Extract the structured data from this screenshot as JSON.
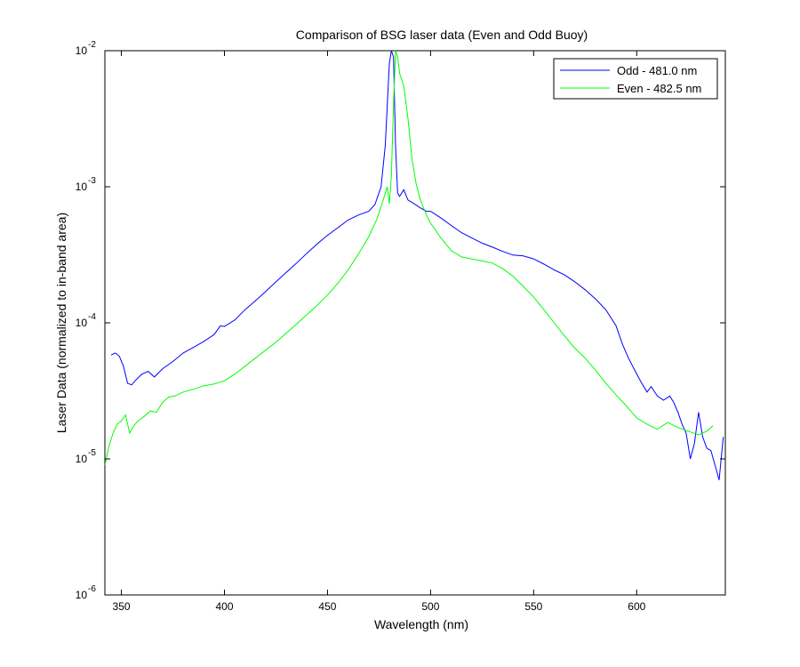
{
  "chart_data": {
    "type": "line",
    "title": "Comparison of BSG laser data (Even and Odd Buoy)",
    "xlabel": "Wavelength (nm)",
    "ylabel": "Laser Data (normalized to in-band area)",
    "xlim": [
      342,
      643
    ],
    "ylim": [
      1e-06,
      0.01
    ],
    "yscale": "log",
    "xticks": [
      350,
      400,
      450,
      500,
      550,
      600
    ],
    "yticks": [
      {
        "value": 1e-06,
        "base": "10",
        "exp": "-6"
      },
      {
        "value": 1e-05,
        "base": "10",
        "exp": "-5"
      },
      {
        "value": 0.0001,
        "base": "10",
        "exp": "-4"
      },
      {
        "value": 0.001,
        "base": "10",
        "exp": "-3"
      },
      {
        "value": 0.01,
        "base": "10",
        "exp": "-2"
      }
    ],
    "grid": false,
    "legend_position": "top-right",
    "series": [
      {
        "name": "Odd - 481.0 nm",
        "color": "#0000ff",
        "points": [
          [
            345,
            5.8e-05
          ],
          [
            347,
            6e-05
          ],
          [
            349,
            5.7e-05
          ],
          [
            351,
            4.8e-05
          ],
          [
            353,
            3.6e-05
          ],
          [
            355,
            3.5e-05
          ],
          [
            357,
            3.8e-05
          ],
          [
            360,
            4.2e-05
          ],
          [
            363,
            4.4e-05
          ],
          [
            366,
            4e-05
          ],
          [
            370,
            4.6e-05
          ],
          [
            375,
            5.2e-05
          ],
          [
            380,
            6e-05
          ],
          [
            385,
            6.6e-05
          ],
          [
            390,
            7.3e-05
          ],
          [
            395,
            8.2e-05
          ],
          [
            398,
            9.5e-05
          ],
          [
            400,
            9.4e-05
          ],
          [
            405,
            0.000105
          ],
          [
            410,
            0.000125
          ],
          [
            415,
            0.000145
          ],
          [
            420,
            0.00017
          ],
          [
            425,
            0.0002
          ],
          [
            430,
            0.000235
          ],
          [
            435,
            0.000275
          ],
          [
            440,
            0.000325
          ],
          [
            445,
            0.00038
          ],
          [
            450,
            0.00044
          ],
          [
            455,
            0.0005
          ],
          [
            460,
            0.00057
          ],
          [
            465,
            0.00062
          ],
          [
            470,
            0.00066
          ],
          [
            473,
            0.00074
          ],
          [
            476,
            0.001
          ],
          [
            478,
            0.002
          ],
          [
            479,
            0.004
          ],
          [
            480,
            0.008
          ],
          [
            481,
            0.01
          ],
          [
            482,
            0.009
          ],
          [
            483,
            0.002
          ],
          [
            484,
            0.0009
          ],
          [
            485,
            0.00085
          ],
          [
            487,
            0.00095
          ],
          [
            489,
            0.0008
          ],
          [
            492,
            0.00075
          ],
          [
            495,
            0.0007
          ],
          [
            498,
            0.00066
          ],
          [
            500,
            0.00066
          ],
          [
            505,
            0.00059
          ],
          [
            510,
            0.00052
          ],
          [
            515,
            0.00046
          ],
          [
            520,
            0.00042
          ],
          [
            525,
            0.000385
          ],
          [
            530,
            0.00036
          ],
          [
            535,
            0.000335
          ],
          [
            540,
            0.000315
          ],
          [
            545,
            0.00031
          ],
          [
            550,
            0.000295
          ],
          [
            555,
            0.00027
          ],
          [
            560,
            0.000245
          ],
          [
            565,
            0.000225
          ],
          [
            570,
            0.0002
          ],
          [
            575,
            0.000175
          ],
          [
            580,
            0.00015
          ],
          [
            585,
            0.000125
          ],
          [
            590,
            9.5e-05
          ],
          [
            593,
            7e-05
          ],
          [
            596,
            5.5e-05
          ],
          [
            599,
            4.5e-05
          ],
          [
            602,
            3.7e-05
          ],
          [
            605,
            3.1e-05
          ],
          [
            607,
            3.4e-05
          ],
          [
            610,
            2.9e-05
          ],
          [
            613,
            2.7e-05
          ],
          [
            616,
            2.9e-05
          ],
          [
            618,
            2.6e-05
          ],
          [
            620,
            2.2e-05
          ],
          [
            622,
            1.8e-05
          ],
          [
            624,
            1.55e-05
          ],
          [
            626,
            1e-05
          ],
          [
            628,
            1.3e-05
          ],
          [
            630,
            2.2e-05
          ],
          [
            632,
            1.45e-05
          ],
          [
            634,
            1.2e-05
          ],
          [
            636,
            1.15e-05
          ],
          [
            638,
            9e-06
          ],
          [
            640,
            7e-06
          ],
          [
            642,
            1.45e-05
          ]
        ]
      },
      {
        "name": "Even - 482.5 nm",
        "color": "#00ff00",
        "points": [
          [
            342,
            9e-06
          ],
          [
            344,
            1.25e-05
          ],
          [
            346,
            1.55e-05
          ],
          [
            348,
            1.8e-05
          ],
          [
            350,
            1.9e-05
          ],
          [
            352,
            2.1e-05
          ],
          [
            354,
            1.55e-05
          ],
          [
            356,
            1.75e-05
          ],
          [
            358,
            1.9e-05
          ],
          [
            361,
            2.05e-05
          ],
          [
            364,
            2.25e-05
          ],
          [
            367,
            2.2e-05
          ],
          [
            370,
            2.6e-05
          ],
          [
            373,
            2.85e-05
          ],
          [
            376,
            2.9e-05
          ],
          [
            380,
            3.1e-05
          ],
          [
            385,
            3.25e-05
          ],
          [
            390,
            3.45e-05
          ],
          [
            395,
            3.55e-05
          ],
          [
            400,
            3.75e-05
          ],
          [
            405,
            4.2e-05
          ],
          [
            410,
            4.8e-05
          ],
          [
            415,
            5.5e-05
          ],
          [
            420,
            6.3e-05
          ],
          [
            425,
            7.2e-05
          ],
          [
            430,
            8.4e-05
          ],
          [
            435,
            9.8e-05
          ],
          [
            440,
            0.000115
          ],
          [
            445,
            0.000135
          ],
          [
            450,
            0.00016
          ],
          [
            455,
            0.000195
          ],
          [
            460,
            0.000245
          ],
          [
            465,
            0.00032
          ],
          [
            470,
            0.00043
          ],
          [
            474,
            0.00058
          ],
          [
            477,
            0.0008
          ],
          [
            479,
            0.001
          ],
          [
            480,
            0.00075
          ],
          [
            481,
            0.0012
          ],
          [
            482,
            0.004
          ],
          [
            483,
            0.01
          ],
          [
            484,
            0.009
          ],
          [
            485,
            0.0068
          ],
          [
            487,
            0.0055
          ],
          [
            489,
            0.0032
          ],
          [
            491,
            0.0016
          ],
          [
            493,
            0.00105
          ],
          [
            495,
            0.0008
          ],
          [
            498,
            0.00062
          ],
          [
            500,
            0.00054
          ],
          [
            505,
            0.00042
          ],
          [
            510,
            0.00034
          ],
          [
            515,
            0.000305
          ],
          [
            520,
            0.000295
          ],
          [
            525,
            0.000285
          ],
          [
            530,
            0.000275
          ],
          [
            535,
            0.00025
          ],
          [
            540,
            0.00022
          ],
          [
            545,
            0.000185
          ],
          [
            550,
            0.000155
          ],
          [
            555,
            0.000125
          ],
          [
            560,
            0.0001
          ],
          [
            565,
            8e-05
          ],
          [
            570,
            6.5e-05
          ],
          [
            575,
            5.5e-05
          ],
          [
            580,
            4.5e-05
          ],
          [
            585,
            3.6e-05
          ],
          [
            590,
            2.95e-05
          ],
          [
            595,
            2.45e-05
          ],
          [
            600,
            2e-05
          ],
          [
            605,
            1.8e-05
          ],
          [
            610,
            1.65e-05
          ],
          [
            615,
            1.85e-05
          ],
          [
            620,
            1.7e-05
          ],
          [
            625,
            1.6e-05
          ],
          [
            630,
            1.5e-05
          ],
          [
            634,
            1.6e-05
          ],
          [
            637,
            1.75e-05
          ]
        ]
      }
    ]
  }
}
